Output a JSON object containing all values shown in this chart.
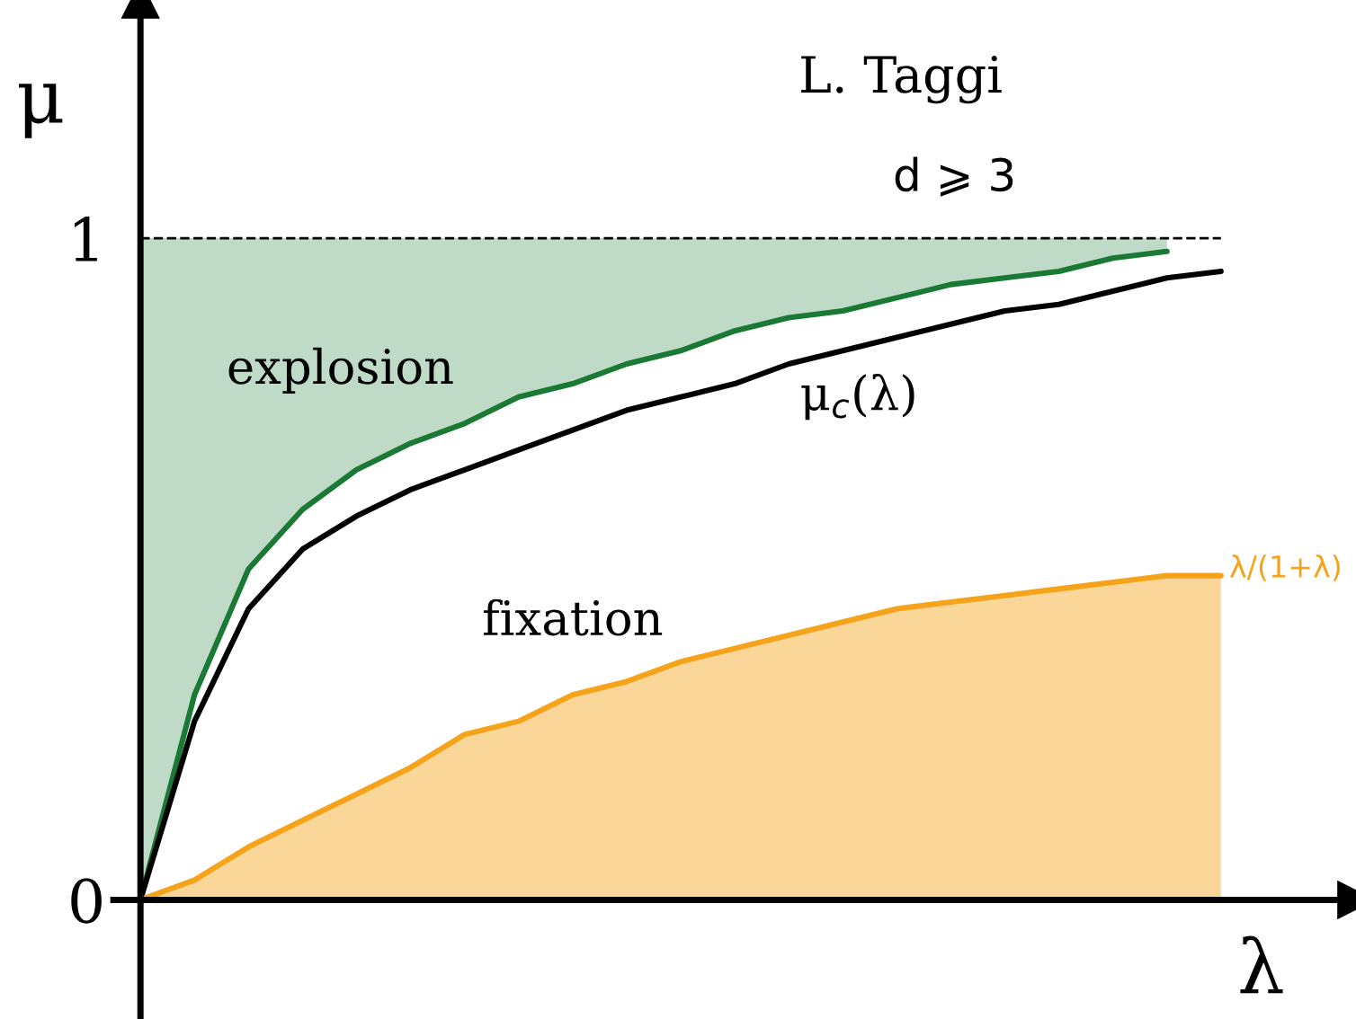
{
  "chart_data": {
    "type": "line",
    "xlabel": "λ",
    "ylabel": "μ",
    "categories": [
      null,
      null,
      null,
      null,
      null,
      null,
      null,
      null,
      null,
      null,
      null,
      null,
      null,
      null,
      null,
      null,
      null,
      null,
      null,
      null,
      null
    ],
    "series": [
      {
        "type": "line",
        "color": "#1a7a35",
        "values": [
          0,
          0.31,
          0.5,
          0.59,
          0.65,
          0.69,
          0.72,
          0.76,
          0.78,
          0.81,
          0.83,
          0.86,
          0.88,
          0.89,
          0.91,
          0.93,
          0.94,
          0.95,
          0.97,
          0.98,
          null
        ],
        "lower": [
          0,
          0.31,
          0.5,
          0.59,
          0.65,
          0.69,
          0.72,
          0.76,
          0.78,
          0.81,
          0.83,
          0.86,
          0.88,
          0.89,
          0.91,
          0.93,
          0.94,
          0.95,
          0.97,
          0.98,
          null
        ],
        "upper": [
          1,
          1,
          1,
          1,
          1,
          1,
          1,
          1,
          1,
          1,
          1,
          1,
          1,
          1,
          1,
          1,
          1,
          1,
          1,
          1,
          null
        ]
      },
      {
        "type": "line",
        "color": "#000000",
        "values": [
          0,
          0.27,
          0.44,
          0.53,
          0.58,
          0.62,
          0.65,
          0.68,
          0.71,
          0.74,
          0.76,
          0.78,
          0.81,
          0.83,
          0.85,
          0.87,
          0.89,
          0.9,
          0.92,
          0.94,
          0.95
        ]
      },
      {
        "type": "area",
        "color": "#f5a31a",
        "values": [
          0,
          0.03,
          0.08,
          0.12,
          0.16,
          0.2,
          0.25,
          0.27,
          0.31,
          0.33,
          0.36,
          0.38,
          0.4,
          0.42,
          0.44,
          0.45,
          0.46,
          0.47,
          0.48,
          0.49,
          0.49
        ]
      }
    ],
    "ylim": [
      -0.18,
      1.36
    ],
    "yticks": [
      0,
      1
    ],
    "ref_lines": [
      {
        "axis": "y",
        "value": 1,
        "color": "#000000",
        "line_style": "dashed"
      }
    ],
    "annotations": [
      "L. Taggi",
      "d ⩾ 3",
      "explosion",
      "μ$_{c}$(λ)",
      "fixation",
      "λ/(1+λ)"
    ],
    "grid": false,
    "legend": false,
    "tick_labels": "y"
  }
}
